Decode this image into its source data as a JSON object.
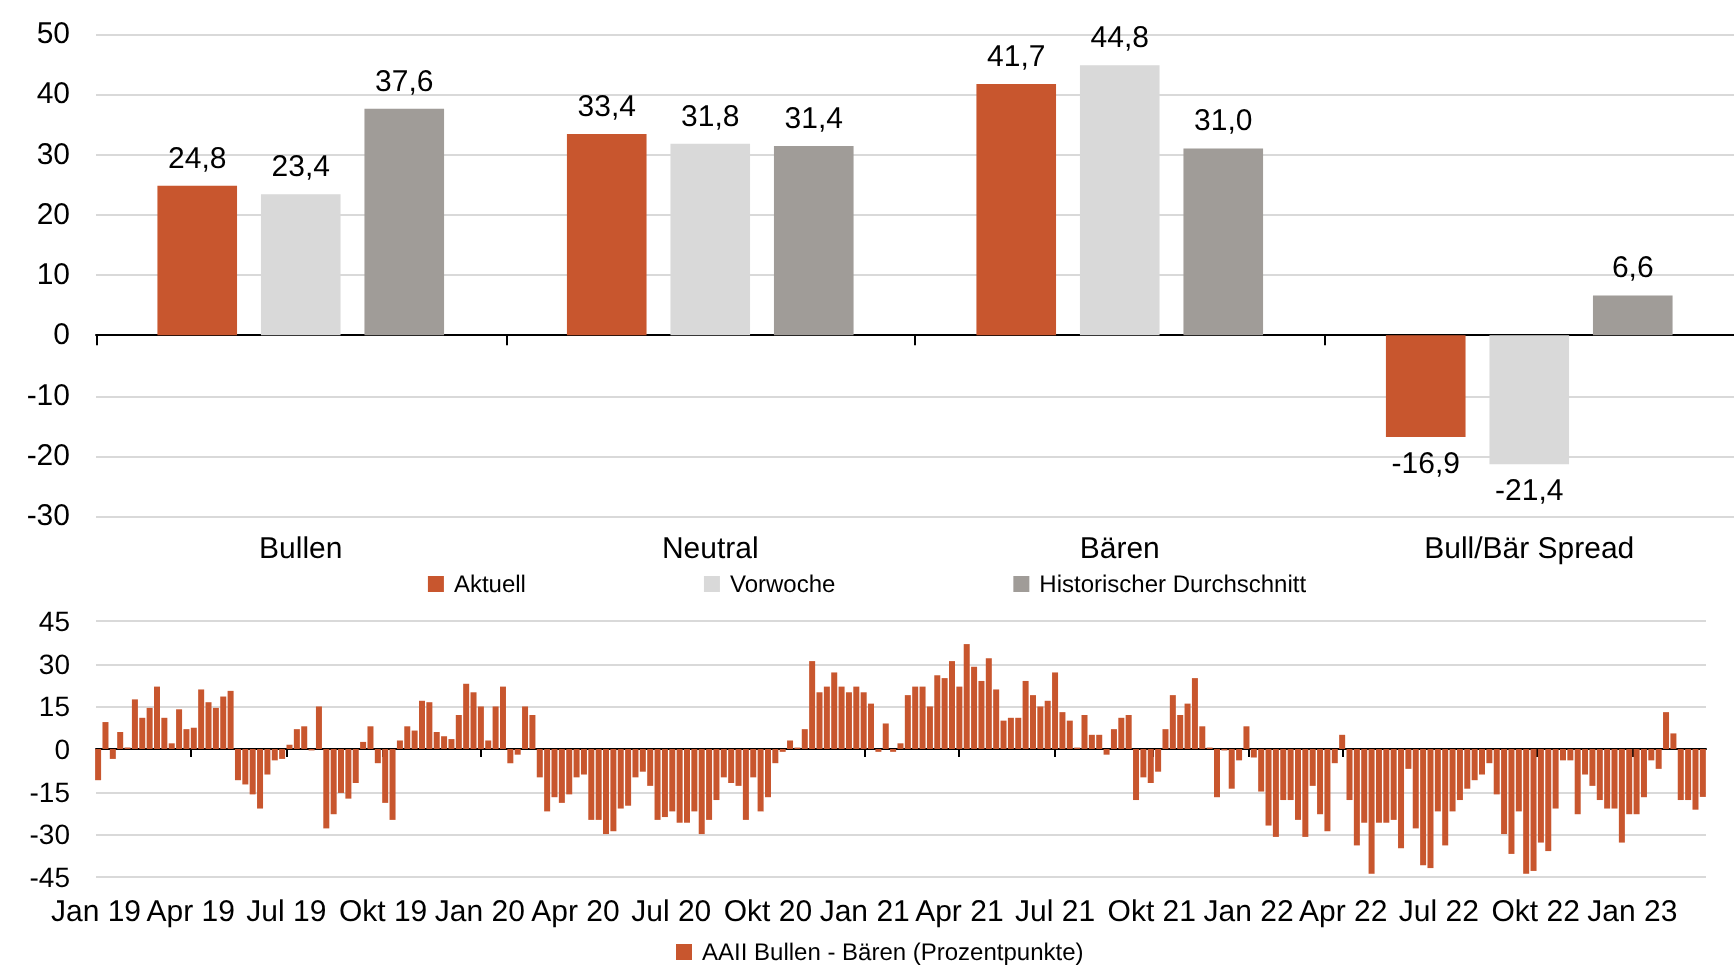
{
  "chart_data": [
    {
      "type": "bar",
      "categories": [
        "Bullen",
        "Neutral",
        "Bären",
        "Bull/Bär Spread"
      ],
      "series": [
        {
          "name": "Aktuell",
          "color": "#c8562e",
          "values": [
            24.8,
            33.4,
            41.7,
            -16.9
          ],
          "value_labels": [
            "24,8",
            "33,4",
            "41,7",
            "-16,9"
          ]
        },
        {
          "name": "Vorwoche",
          "color": "#d9d9d9",
          "values": [
            23.4,
            31.8,
            44.8,
            -21.4
          ],
          "value_labels": [
            "23,4",
            "31,8",
            "44,8",
            "-21,4"
          ]
        },
        {
          "name": "Historischer Durchschnitt",
          "color": "#a09c98",
          "values": [
            37.6,
            31.4,
            31.0,
            6.6
          ],
          "value_labels": [
            "37,6",
            "31,4",
            "31,0",
            "6,6"
          ]
        }
      ],
      "ylim": [
        -30,
        50
      ],
      "yticks": [
        -30,
        -20,
        -10,
        0,
        10,
        20,
        30,
        40,
        50
      ],
      "grid": "y",
      "legend": "bottom"
    },
    {
      "type": "bar",
      "x": [
        "2019-01-03",
        "2019-01-10",
        "2019-01-17",
        "2019-01-24",
        "2019-01-31",
        "2019-02-07",
        "2019-02-14",
        "2019-02-21",
        "2019-02-28",
        "2019-03-07",
        "2019-03-14",
        "2019-03-21",
        "2019-03-28",
        "2019-04-04",
        "2019-04-11",
        "2019-04-18",
        "2019-04-25",
        "2019-05-02",
        "2019-05-09",
        "2019-05-16",
        "2019-05-23",
        "2019-05-30",
        "2019-06-06",
        "2019-06-13",
        "2019-06-20",
        "2019-06-27",
        "2019-07-04",
        "2019-07-11",
        "2019-07-18",
        "2019-07-25",
        "2019-08-01",
        "2019-08-08",
        "2019-08-15",
        "2019-08-22",
        "2019-08-29",
        "2019-09-05",
        "2019-09-12",
        "2019-09-19",
        "2019-09-26",
        "2019-10-03",
        "2019-10-10",
        "2019-10-17",
        "2019-10-24",
        "2019-10-31",
        "2019-11-07",
        "2019-11-14",
        "2019-11-21",
        "2019-11-28",
        "2019-12-05",
        "2019-12-12",
        "2019-12-19",
        "2019-12-26",
        "2020-01-02",
        "2020-01-09",
        "2020-01-16",
        "2020-01-23",
        "2020-01-30",
        "2020-02-06",
        "2020-02-13",
        "2020-02-20",
        "2020-02-27",
        "2020-03-05",
        "2020-03-12",
        "2020-03-19",
        "2020-03-26",
        "2020-04-02",
        "2020-04-09",
        "2020-04-16",
        "2020-04-23",
        "2020-04-30",
        "2020-05-07",
        "2020-05-14",
        "2020-05-21",
        "2020-05-28",
        "2020-06-04",
        "2020-06-11",
        "2020-06-18",
        "2020-06-25",
        "2020-07-02",
        "2020-07-09",
        "2020-07-16",
        "2020-07-23",
        "2020-07-30",
        "2020-08-06",
        "2020-08-13",
        "2020-08-20",
        "2020-08-27",
        "2020-09-03",
        "2020-09-10",
        "2020-09-17",
        "2020-09-24",
        "2020-10-01",
        "2020-10-08",
        "2020-10-15",
        "2020-10-22",
        "2020-10-29",
        "2020-11-05",
        "2020-11-12",
        "2020-11-19",
        "2020-11-26",
        "2020-12-03",
        "2020-12-10",
        "2020-12-17",
        "2020-12-24",
        "2020-12-31",
        "2021-01-07",
        "2021-01-14",
        "2021-01-21",
        "2021-01-28",
        "2021-02-04",
        "2021-02-11",
        "2021-02-18",
        "2021-02-25",
        "2021-03-04",
        "2021-03-11",
        "2021-03-18",
        "2021-03-25",
        "2021-04-01",
        "2021-04-08",
        "2021-04-15",
        "2021-04-22",
        "2021-04-29",
        "2021-05-06",
        "2021-05-13",
        "2021-05-20",
        "2021-05-27",
        "2021-06-03",
        "2021-06-10",
        "2021-06-17",
        "2021-06-24",
        "2021-07-01",
        "2021-07-08",
        "2021-07-15",
        "2021-07-22",
        "2021-07-29",
        "2021-08-05",
        "2021-08-12",
        "2021-08-19",
        "2021-08-26",
        "2021-09-02",
        "2021-09-09",
        "2021-09-16",
        "2021-09-23",
        "2021-09-30",
        "2021-10-07",
        "2021-10-14",
        "2021-10-21",
        "2021-10-28",
        "2021-11-04",
        "2021-11-11",
        "2021-11-18",
        "2021-11-25",
        "2021-12-02",
        "2021-12-09",
        "2021-12-16",
        "2021-12-23",
        "2021-12-30",
        "2022-01-06",
        "2022-01-13",
        "2022-01-20",
        "2022-01-27",
        "2022-02-03",
        "2022-02-10",
        "2022-02-17",
        "2022-02-24",
        "2022-03-03",
        "2022-03-10",
        "2022-03-17",
        "2022-03-24",
        "2022-03-31",
        "2022-04-07",
        "2022-04-14",
        "2022-04-21",
        "2022-04-28",
        "2022-05-05",
        "2022-05-12",
        "2022-05-19",
        "2022-05-26",
        "2022-06-02",
        "2022-06-09",
        "2022-06-16",
        "2022-06-23",
        "2022-06-30",
        "2022-07-07",
        "2022-07-14",
        "2022-07-21",
        "2022-07-28",
        "2022-08-04",
        "2022-08-11",
        "2022-08-18",
        "2022-08-25",
        "2022-09-01",
        "2022-09-08",
        "2022-09-15",
        "2022-09-22",
        "2022-09-29",
        "2022-10-06",
        "2022-10-13",
        "2022-10-20",
        "2022-10-27",
        "2022-11-03",
        "2022-11-10",
        "2022-11-17",
        "2022-11-24",
        "2022-12-01",
        "2022-12-08",
        "2022-12-15",
        "2022-12-22",
        "2022-12-29",
        "2023-01-05",
        "2023-01-12",
        "2023-01-19",
        "2023-01-26",
        "2023-02-02",
        "2023-02-09",
        "2023-02-16",
        "2023-02-23",
        "2023-03-02",
        "2023-03-09"
      ],
      "series": [
        {
          "name": "AAII Bullen - Bären (Prozentpunkte)",
          "color": "#c8562e",
          "values": [
            -11,
            9.5,
            -3.5,
            6,
            0.5,
            17.5,
            11,
            14.5,
            22,
            11,
            2,
            14,
            7,
            7.5,
            21,
            16.5,
            14.5,
            18.5,
            20.5,
            -11,
            -12.5,
            -16,
            -21,
            -9,
            -4,
            -3.5,
            1.5,
            7,
            8,
            -0.5,
            15,
            -28,
            -23,
            -15.5,
            -17.5,
            -12,
            2.5,
            8,
            -5,
            -19,
            -25,
            3,
            8,
            6.5,
            17,
            16.5,
            6,
            4.5,
            3.5,
            12,
            23,
            20,
            15,
            3,
            15,
            22,
            -5,
            -2,
            15,
            12,
            -10,
            -22,
            -17,
            -19,
            -16,
            -10,
            -9,
            -25,
            -25,
            -30,
            -29,
            -21,
            -20,
            -10,
            -8,
            -13,
            -25,
            -24,
            -22,
            -26,
            -26,
            -22,
            -30,
            -25,
            -18,
            -10,
            -12,
            -13,
            -25,
            -10,
            -22,
            -17,
            -5,
            -1,
            3,
            0.5,
            7,
            31,
            20,
            22,
            27,
            22,
            20,
            22,
            20,
            16,
            -1,
            9,
            -1,
            2,
            19,
            22,
            22,
            15,
            26,
            25,
            31,
            22,
            37,
            29,
            24,
            32,
            21,
            10,
            11,
            11,
            24,
            19,
            15,
            17,
            27,
            13,
            10,
            0.5,
            12,
            5,
            5,
            -2,
            7,
            11,
            12,
            -18,
            -10,
            -12,
            -8,
            7,
            19,
            12,
            16,
            25,
            8,
            0.5,
            -17,
            -0.5,
            -14,
            -4,
            8,
            -3,
            -15,
            -27,
            -31,
            -18,
            -18,
            -25,
            -31,
            -13,
            -23,
            -29,
            -5,
            5,
            -18,
            -34,
            -26,
            -44,
            -26,
            -26,
            -25,
            -35,
            -7,
            -28,
            -41,
            -42,
            -22,
            -34,
            -22,
            -18,
            -14,
            -11,
            -9,
            -5,
            -16,
            -30,
            -37,
            -22,
            -44,
            -43,
            -33,
            -36,
            -21,
            -4,
            -4,
            -23,
            -9,
            -13,
            -18,
            -21,
            -21,
            -33,
            -23,
            -23,
            -17,
            -4,
            -7,
            13,
            5.5,
            -18,
            -18,
            -21.4,
            -16.9
          ]
        }
      ],
      "xlim": [
        "2019-01-01",
        "2023-03-12"
      ],
      "xticks": [
        {
          "value": "2019-01-01",
          "label": "Jan 19"
        },
        {
          "value": "2019-04-01",
          "label": "Apr 19"
        },
        {
          "value": "2019-07-01",
          "label": "Jul 19"
        },
        {
          "value": "2019-10-01",
          "label": "Okt 19"
        },
        {
          "value": "2020-01-01",
          "label": "Jan 20"
        },
        {
          "value": "2020-04-01",
          "label": "Apr 20"
        },
        {
          "value": "2020-07-01",
          "label": "Jul 20"
        },
        {
          "value": "2020-10-01",
          "label": "Okt 20"
        },
        {
          "value": "2021-01-01",
          "label": "Jan 21"
        },
        {
          "value": "2021-04-01",
          "label": "Apr 21"
        },
        {
          "value": "2021-07-01",
          "label": "Jul 21"
        },
        {
          "value": "2021-10-01",
          "label": "Okt 21"
        },
        {
          "value": "2022-01-01",
          "label": "Jan 22"
        },
        {
          "value": "2022-04-01",
          "label": "Apr 22"
        },
        {
          "value": "2022-07-01",
          "label": "Jul 22"
        },
        {
          "value": "2022-10-01",
          "label": "Okt 22"
        },
        {
          "value": "2023-01-01",
          "label": "Jan 23"
        }
      ],
      "ylim": [
        -45,
        45
      ],
      "yticks": [
        -45,
        -30,
        -15,
        0,
        15,
        30,
        45
      ],
      "grid": "y",
      "legend": "bottom"
    }
  ]
}
